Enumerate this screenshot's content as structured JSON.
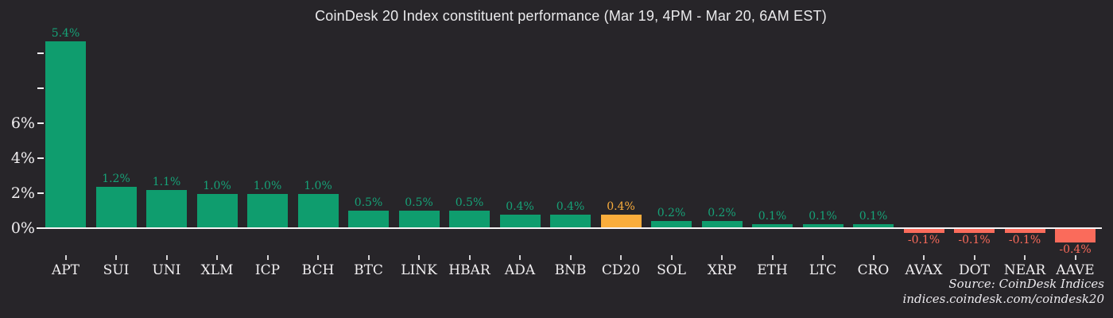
{
  "title": "CoinDesk 20 Index constituent performance (Mar 19, 4PM - Mar 20, 6AM EST)",
  "source": {
    "line1": "Source: CoinDesk Indices",
    "line2": "indices.coindesk.com/coindesk20"
  },
  "colors": {
    "background": "#272529",
    "positive_bar": "#0f9d6e",
    "positive_label": "#16a277",
    "highlight_bar": "#faad3c",
    "highlight_label": "#faad3c",
    "negative_bar": "#fa6b5b",
    "negative_label": "#fa6b5b",
    "axis_text": "#f1eff1",
    "axis_line": "#f6f4f6"
  },
  "chart_data": {
    "type": "bar",
    "title": "CoinDesk 20 Index constituent performance (Mar 19, 4PM - Mar 20, 6AM EST)",
    "categories": [
      "APT",
      "SUI",
      "UNI",
      "XLM",
      "ICP",
      "BCH",
      "BTC",
      "LINK",
      "HBAR",
      "ADA",
      "BNB",
      "CD20",
      "SOL",
      "XRP",
      "ETH",
      "LTC",
      "CRO",
      "AVAX",
      "DOT",
      "NEAR",
      "AAVE"
    ],
    "values": [
      5.4,
      1.2,
      1.1,
      1.0,
      1.0,
      1.0,
      0.5,
      0.5,
      0.5,
      0.4,
      0.4,
      0.4,
      0.2,
      0.2,
      0.1,
      0.1,
      0.1,
      -0.1,
      -0.1,
      -0.1,
      -0.4
    ],
    "value_labels": [
      "5.4%",
      "1.2%",
      "1.1%",
      "1.0%",
      "1.0%",
      "1.0%",
      "0.5%",
      "0.5%",
      "0.5%",
      "0.4%",
      "0.4%",
      "0.4%",
      "0.2%",
      "0.2%",
      "0.1%",
      "0.1%",
      "0.1%",
      "-0.1%",
      "-0.1%",
      "-0.1%",
      "-0.4%"
    ],
    "highlight_category": "CD20",
    "xlabel": "",
    "ylabel": "",
    "y_axis": {
      "tick_labels": [
        "0%",
        "2%",
        "4%",
        "6%"
      ],
      "unlabeled_upper_ticks": 2,
      "tick_step_pct": 2
    },
    "grid": false,
    "legend": false,
    "bar_color_positive": "#0f9d6e",
    "bar_color_negative": "#fa6b5b",
    "bar_color_highlight": "#faad3c"
  }
}
